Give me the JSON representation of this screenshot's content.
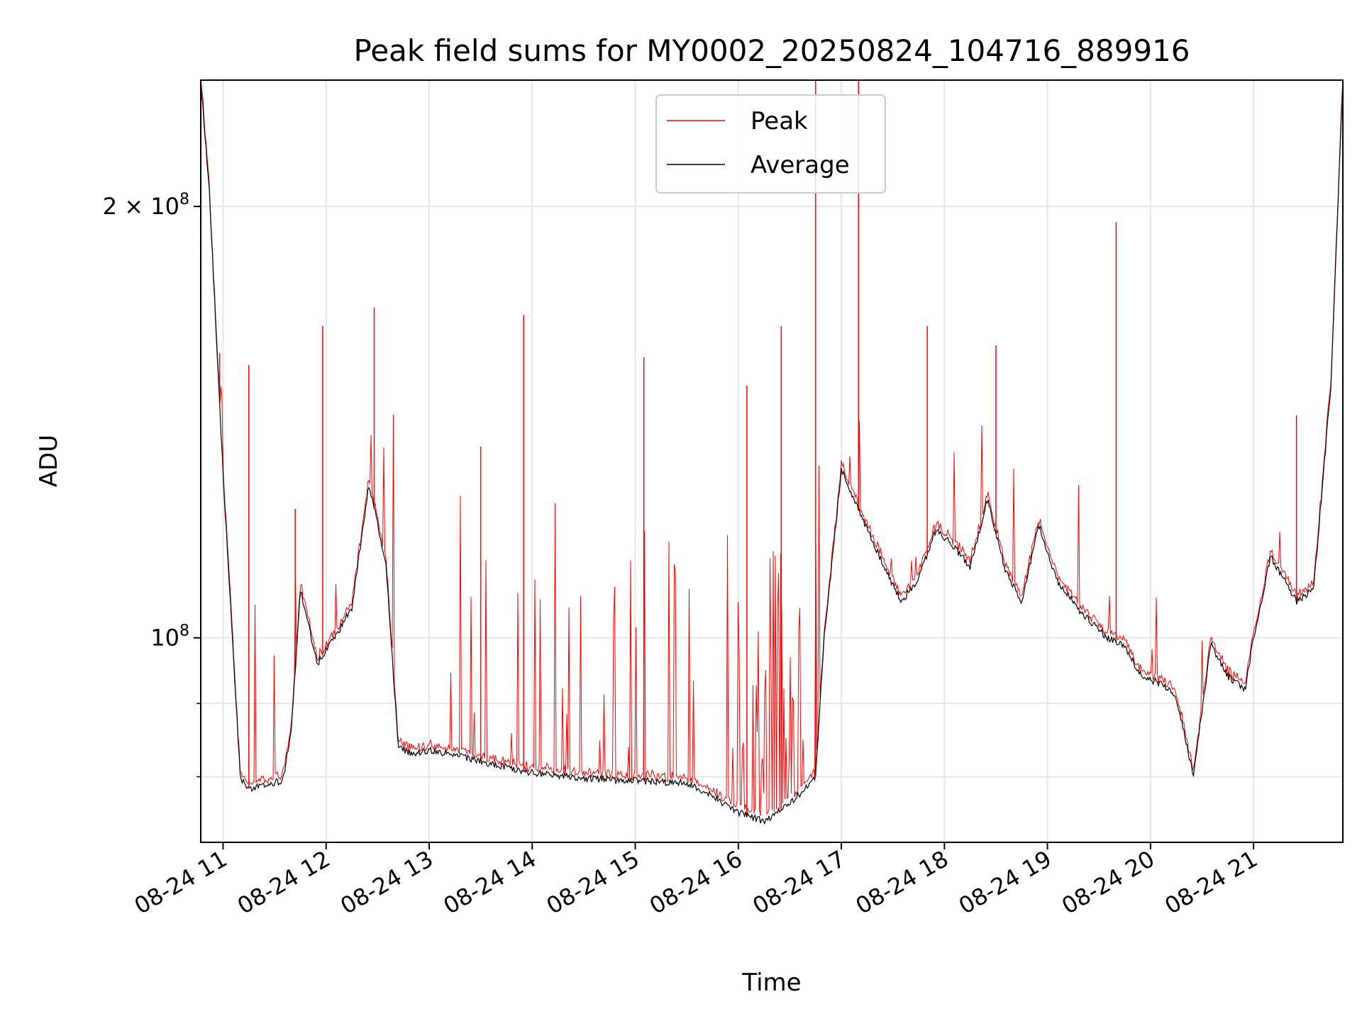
{
  "chart_data": {
    "type": "line",
    "title": "Peak field sums for MY0002_20250824_104716_889916",
    "xlabel": "Time",
    "ylabel": "ADU",
    "x_format": "MM-DD HH",
    "x_range": [
      "2025-08-24 10:47",
      "2025-08-24 21:52"
    ],
    "y_scale": "log",
    "ylim": [
      72000000,
      245000000
    ],
    "grid": true,
    "legend_position": "upper center",
    "x_ticks": [
      "08-24 11",
      "08-24 12",
      "08-24 13",
      "08-24 14",
      "08-24 15",
      "08-24 16",
      "08-24 17",
      "08-24 18",
      "08-24 19",
      "08-24 20",
      "08-24 21"
    ],
    "y_ticks": [
      {
        "value": 200000000,
        "label": "2 × 10^8",
        "base": "2 × 10",
        "exp": "8"
      },
      {
        "value": 100000000,
        "label": "10^8",
        "base": "10",
        "exp": "8"
      }
    ],
    "y_minor_ticks": [
      80000000,
      90000000
    ],
    "series": [
      {
        "name": "Average",
        "color": "#000000",
        "x": [
          "2025-08-24 10:47",
          "2025-08-24 10:52",
          "2025-08-24 11:00",
          "2025-08-24 11:05",
          "2025-08-24 11:10",
          "2025-08-24 11:15",
          "2025-08-24 11:25",
          "2025-08-24 11:35",
          "2025-08-24 11:40",
          "2025-08-24 11:45",
          "2025-08-24 11:55",
          "2025-08-24 12:05",
          "2025-08-24 12:15",
          "2025-08-24 12:25",
          "2025-08-24 12:30",
          "2025-08-24 12:35",
          "2025-08-24 12:42",
          "2025-08-24 12:50",
          "2025-08-24 13:00",
          "2025-08-24 13:30",
          "2025-08-24 14:00",
          "2025-08-24 14:30",
          "2025-08-24 15:00",
          "2025-08-24 15:30",
          "2025-08-24 15:45",
          "2025-08-24 16:00",
          "2025-08-24 16:15",
          "2025-08-24 16:30",
          "2025-08-24 16:45",
          "2025-08-24 16:50",
          "2025-08-24 17:00",
          "2025-08-24 17:15",
          "2025-08-24 17:25",
          "2025-08-24 17:35",
          "2025-08-24 17:45",
          "2025-08-24 17:55",
          "2025-08-24 18:05",
          "2025-08-24 18:15",
          "2025-08-24 18:25",
          "2025-08-24 18:35",
          "2025-08-24 18:45",
          "2025-08-24 18:55",
          "2025-08-24 19:05",
          "2025-08-24 19:20",
          "2025-08-24 19:35",
          "2025-08-24 19:45",
          "2025-08-24 19:55",
          "2025-08-24 20:05",
          "2025-08-24 20:15",
          "2025-08-24 20:25",
          "2025-08-24 20:35",
          "2025-08-24 20:45",
          "2025-08-24 20:55",
          "2025-08-24 21:00",
          "2025-08-24 21:10",
          "2025-08-24 21:25",
          "2025-08-24 21:35",
          "2025-08-24 21:45",
          "2025-08-24 21:52"
        ],
        "y": [
          245000000,
          205000000,
          130000000,
          102000000,
          80000000,
          78500000,
          79000000,
          79500000,
          87000000,
          108000000,
          96000000,
          100000000,
          105000000,
          128000000,
          120000000,
          112000000,
          84000000,
          83000000,
          83500000,
          82000000,
          80500000,
          79800000,
          79500000,
          79200000,
          77500000,
          75500000,
          74500000,
          76500000,
          80000000,
          100000000,
          131000000,
          119000000,
          112000000,
          106000000,
          110000000,
          119000000,
          116000000,
          112000000,
          125000000,
          112000000,
          106000000,
          120000000,
          110000000,
          104000000,
          100000000,
          98500000,
          94000000,
          93000000,
          91000000,
          80000000,
          99000000,
          94000000,
          92000000,
          100000000,
          114000000,
          106000000,
          108000000,
          150000000,
          245000000
        ]
      },
      {
        "name": "Peak",
        "color": "#ff0000",
        "spikes": [
          {
            "x": "2025-08-24 10:58",
            "y": 158000000
          },
          {
            "x": "2025-08-24 11:15",
            "y": 155000000
          },
          {
            "x": "2025-08-24 11:42",
            "y": 123000000
          },
          {
            "x": "2025-08-24 11:58",
            "y": 165000000
          },
          {
            "x": "2025-08-24 12:28",
            "y": 170000000
          },
          {
            "x": "2025-08-24 13:30",
            "y": 136000000
          },
          {
            "x": "2025-08-24 13:55",
            "y": 168000000
          },
          {
            "x": "2025-08-24 15:05",
            "y": 157000000
          },
          {
            "x": "2025-08-24 16:05",
            "y": 150000000
          },
          {
            "x": "2025-08-24 16:25",
            "y": 165000000
          },
          {
            "x": "2025-08-24 16:45",
            "y": 245000000
          },
          {
            "x": "2025-08-24 17:10",
            "y": 245000000
          },
          {
            "x": "2025-08-24 17:50",
            "y": 165000000
          },
          {
            "x": "2025-08-24 18:30",
            "y": 160000000
          },
          {
            "x": "2025-08-24 19:40",
            "y": 195000000
          },
          {
            "x": "2025-08-24 21:25",
            "y": 143000000
          }
        ]
      }
    ]
  }
}
